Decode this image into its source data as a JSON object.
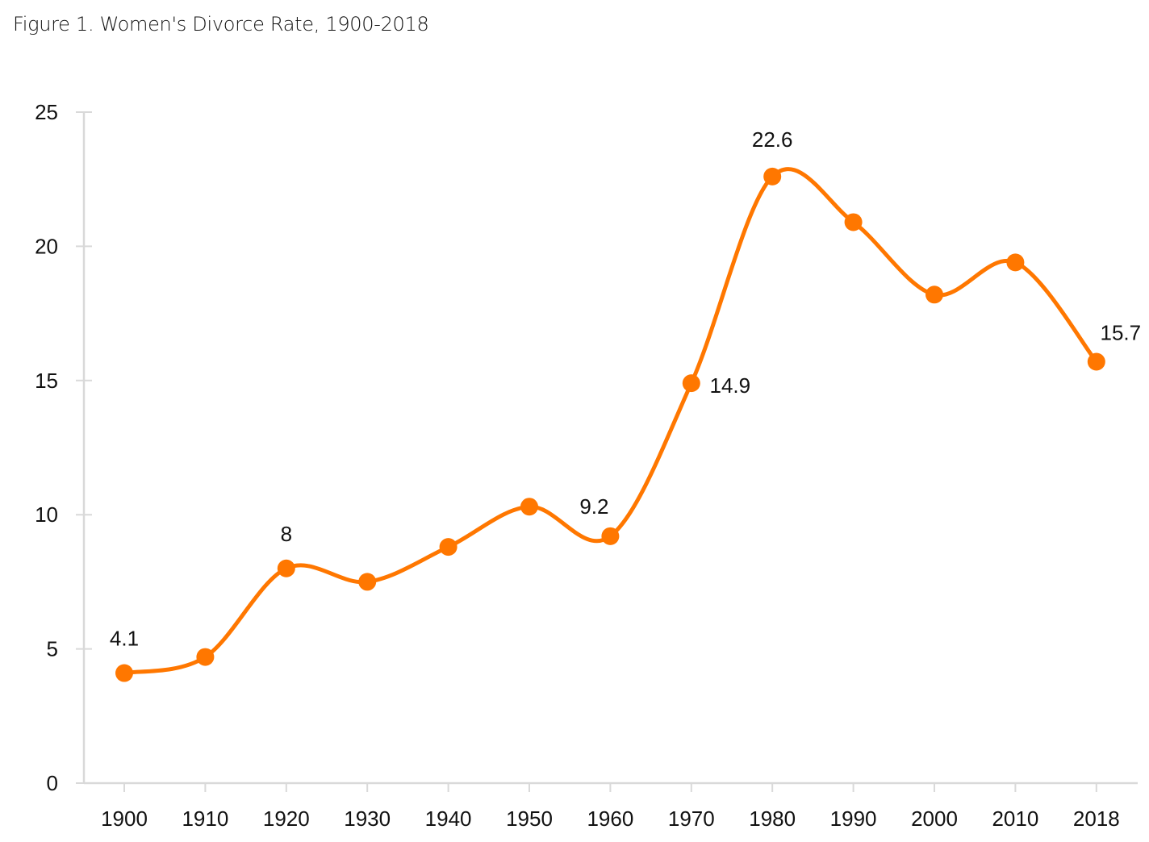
{
  "title": "Figure 1. Women's Divorce Rate, 1900-2018",
  "colors": {
    "line": "#FF7700",
    "axis": "#D9D9D9",
    "text": "#111111"
  },
  "chart_data": {
    "type": "line",
    "title": "Figure 1. Women's Divorce Rate, 1900-2018",
    "xlabel": "",
    "ylabel": "",
    "categories": [
      "1900",
      "1910",
      "1920",
      "1930",
      "1940",
      "1950",
      "1960",
      "1970",
      "1980",
      "1990",
      "2000",
      "2010",
      "2018"
    ],
    "series": [
      {
        "name": "Women's Divorce Rate",
        "values": [
          4.1,
          4.7,
          8.0,
          7.5,
          8.8,
          10.3,
          9.2,
          14.9,
          22.6,
          20.9,
          18.2,
          19.4,
          15.7
        ]
      }
    ],
    "data_labels": [
      {
        "category": "1900",
        "text": "4.1"
      },
      {
        "category": "1920",
        "text": "8"
      },
      {
        "category": "1960",
        "text": "9.2"
      },
      {
        "category": "1970",
        "text": "14.9"
      },
      {
        "category": "1980",
        "text": "22.6"
      },
      {
        "category": "2018",
        "text": "15.7"
      }
    ],
    "yticks": [
      0,
      5,
      10,
      15,
      20,
      25
    ],
    "ylim": [
      0,
      25
    ],
    "grid": false,
    "legend": "none",
    "smooth": true
  }
}
